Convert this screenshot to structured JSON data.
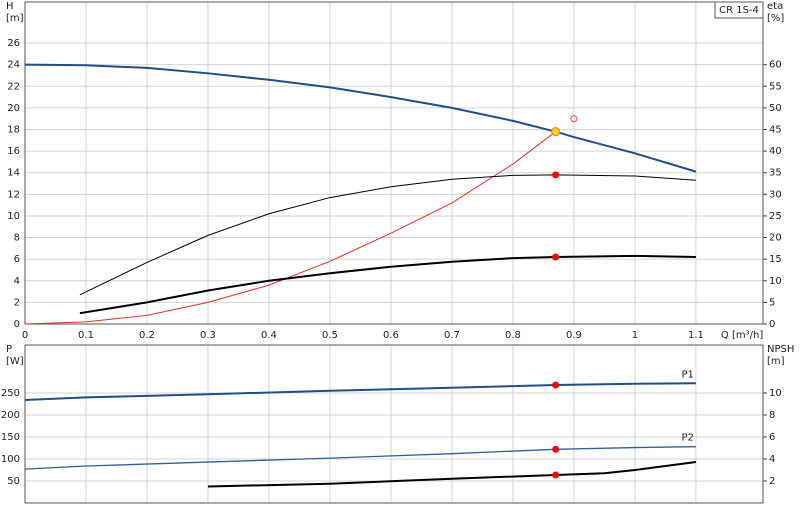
{
  "chart_data": [
    {
      "type": "line",
      "title": "CR 1S-4",
      "ylabel": [
        "H",
        "[m]"
      ],
      "y2label": [
        "eta",
        "[%]"
      ],
      "xlabel": "Q [m³/h]",
      "xlim": [
        0,
        1.21
      ],
      "xticks": [
        0,
        0.1,
        0.2,
        0.3,
        0.4,
        0.5,
        0.6,
        0.7,
        0.8,
        0.9,
        1.0,
        1.1
      ],
      "xtick_labels": true,
      "ylim": [
        0,
        29.8
      ],
      "yticks": [
        0,
        2,
        4,
        6,
        8,
        10,
        12,
        14,
        16,
        18,
        20,
        22,
        24,
        26
      ],
      "y2lim": [
        0,
        74.5
      ],
      "y2ticks": [
        0,
        5,
        10,
        15,
        20,
        25,
        30,
        35,
        40,
        45,
        50,
        55,
        60
      ],
      "grid": true,
      "series": [
        {
          "color": "#1f4e8c",
          "width": 2,
          "style": "line",
          "x": [
            0,
            0.1,
            0.2,
            0.3,
            0.4,
            0.5,
            0.6,
            0.7,
            0.8,
            0.87,
            0.9,
            1.0,
            1.1
          ],
          "values": [
            24,
            23.95,
            23.7,
            23.2,
            22.6,
            21.9,
            21.0,
            20.0,
            18.8,
            17.8,
            17.3,
            15.8,
            14.1
          ]
        },
        {
          "color": "#e03030",
          "width": 1,
          "style": "line",
          "axis": "y2",
          "x": [
            0,
            0.1,
            0.2,
            0.3,
            0.4,
            0.5,
            0.6,
            0.7,
            0.8,
            0.87
          ],
          "values": [
            0,
            0.5,
            2,
            5,
            9,
            14.5,
            21,
            28,
            37,
            44.5
          ]
        },
        {
          "color": "#000000",
          "width": 1,
          "style": "line",
          "axis": "y2",
          "x": [
            0.09,
            0.2,
            0.3,
            0.4,
            0.5,
            0.6,
            0.7,
            0.8,
            0.87,
            1.0,
            1.1
          ],
          "values": [
            6.75,
            14.25,
            20.5,
            25.5,
            29.25,
            31.75,
            33.5,
            34.4,
            34.5,
            34.25,
            33.25
          ]
        },
        {
          "color": "#000000",
          "width": 2,
          "style": "line",
          "axis": "y2",
          "x": [
            0.09,
            0.2,
            0.3,
            0.4,
            0.5,
            0.6,
            0.7,
            0.8,
            0.87,
            1.0,
            1.1
          ],
          "values": [
            2.5,
            5,
            7.75,
            10,
            11.75,
            13.25,
            14.4,
            15.25,
            15.5,
            15.75,
            15.5
          ]
        },
        {
          "color": "#ff0000",
          "style": "dot",
          "axis": "y2",
          "x": [
            0.87,
            0.87
          ],
          "values": [
            34.5,
            15.5
          ]
        },
        {
          "color": "#ff4040",
          "style": "circle",
          "axis": "y2",
          "x": [
            0.9
          ],
          "values": [
            47.5
          ]
        },
        {
          "color": "#ffd21f",
          "style": "duty",
          "x": [
            0.87
          ],
          "values": [
            17.8
          ]
        }
      ]
    },
    {
      "type": "line",
      "ylabel": [
        "P",
        "[W]"
      ],
      "y2label": [
        "NPSH",
        "[m]"
      ],
      "xlim": [
        0,
        1.21
      ],
      "xticks": [
        0,
        0.1,
        0.2,
        0.3,
        0.4,
        0.5,
        0.6,
        0.7,
        0.8,
        0.9,
        1.0,
        1.1
      ],
      "xtick_labels": false,
      "ylim": [
        0,
        359
      ],
      "yticks": [
        50,
        100,
        150,
        200,
        250
      ],
      "y2lim": [
        0,
        14.36
      ],
      "y2ticks": [
        2,
        4,
        6,
        8,
        10
      ],
      "grid": true,
      "series": [
        {
          "name": "P1",
          "color": "#1f4e8c",
          "width": 2,
          "style": "line",
          "x": [
            0,
            0.1,
            0.3,
            0.5,
            0.7,
            0.87,
            1.0,
            1.1
          ],
          "values": [
            234,
            240,
            247,
            255,
            262,
            268,
            271,
            272
          ]
        },
        {
          "name": "P2",
          "color": "#2f5f9f",
          "width": 1.3,
          "style": "line",
          "x": [
            0,
            0.1,
            0.3,
            0.5,
            0.7,
            0.87,
            1.0,
            1.1
          ],
          "values": [
            77,
            84,
            93,
            102,
            112,
            122,
            126,
            128
          ]
        },
        {
          "color": "#000000",
          "width": 2,
          "style": "line",
          "axis": "y2",
          "x": [
            0.3,
            0.5,
            0.7,
            0.87,
            0.95,
            1.0,
            1.1
          ],
          "values": [
            1.5,
            1.75,
            2.2,
            2.55,
            2.7,
            3.0,
            3.73
          ]
        },
        {
          "color": "#ff0000",
          "style": "dot",
          "x": [
            0.87,
            0.87
          ],
          "values": [
            268,
            122
          ]
        },
        {
          "color": "#ff0000",
          "style": "dot",
          "axis": "y2",
          "x": [
            0.87
          ],
          "values": [
            2.55
          ]
        }
      ]
    }
  ]
}
